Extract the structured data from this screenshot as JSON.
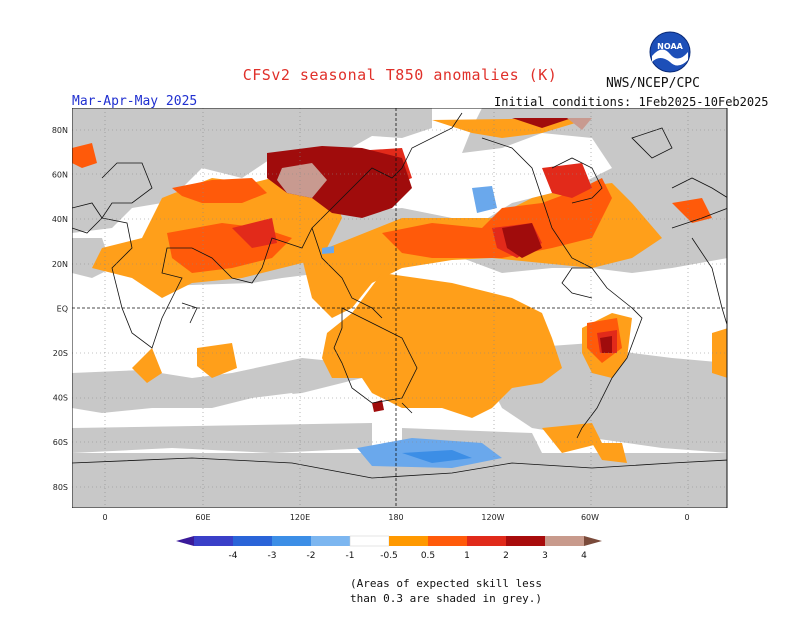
{
  "title": "CFSv2 seasonal T850 anomalies (K)",
  "agency": "NWS/NCEP/CPC",
  "logo_text": "NOAA",
  "season": "Mar-Apr-May 2025",
  "initial_conditions": "Initial conditions: 1Feb2025-10Feb2025",
  "lat_labels": [
    "80N",
    "60N",
    "40N",
    "20N",
    "EQ",
    "20S",
    "40S",
    "60S",
    "80S"
  ],
  "lon_labels": [
    "0",
    "60E",
    "120E",
    "180",
    "120W",
    "60W",
    "0"
  ],
  "colorbar": {
    "labels": [
      "-4",
      "-3",
      "-2",
      "-1",
      "-0.5",
      "0.5",
      "1",
      "2",
      "3",
      "4"
    ],
    "colors": [
      "#3a1a9a",
      "#3a3fc8",
      "#2a64d8",
      "#3c8ee6",
      "#7cb6f0",
      "#ffffff",
      "#ff9900",
      "#ff5a0a",
      "#e02a1a",
      "#a80c0c",
      "#c89a8c",
      "#7a4a3a"
    ]
  },
  "note_line1": "(Areas of expected skill less",
  "note_line2": "than 0.3 are shaded in grey.)",
  "colors": {
    "grey": "#c8c8c8",
    "orange": "#ff9f1a",
    "orange_red": "#ff5a0a",
    "red": "#e22a1a",
    "dark_red": "#a00c0c",
    "brown": "#c89a90",
    "blue": "#6aa8ec",
    "title": "#e0302a",
    "season": "#2030d0"
  }
}
